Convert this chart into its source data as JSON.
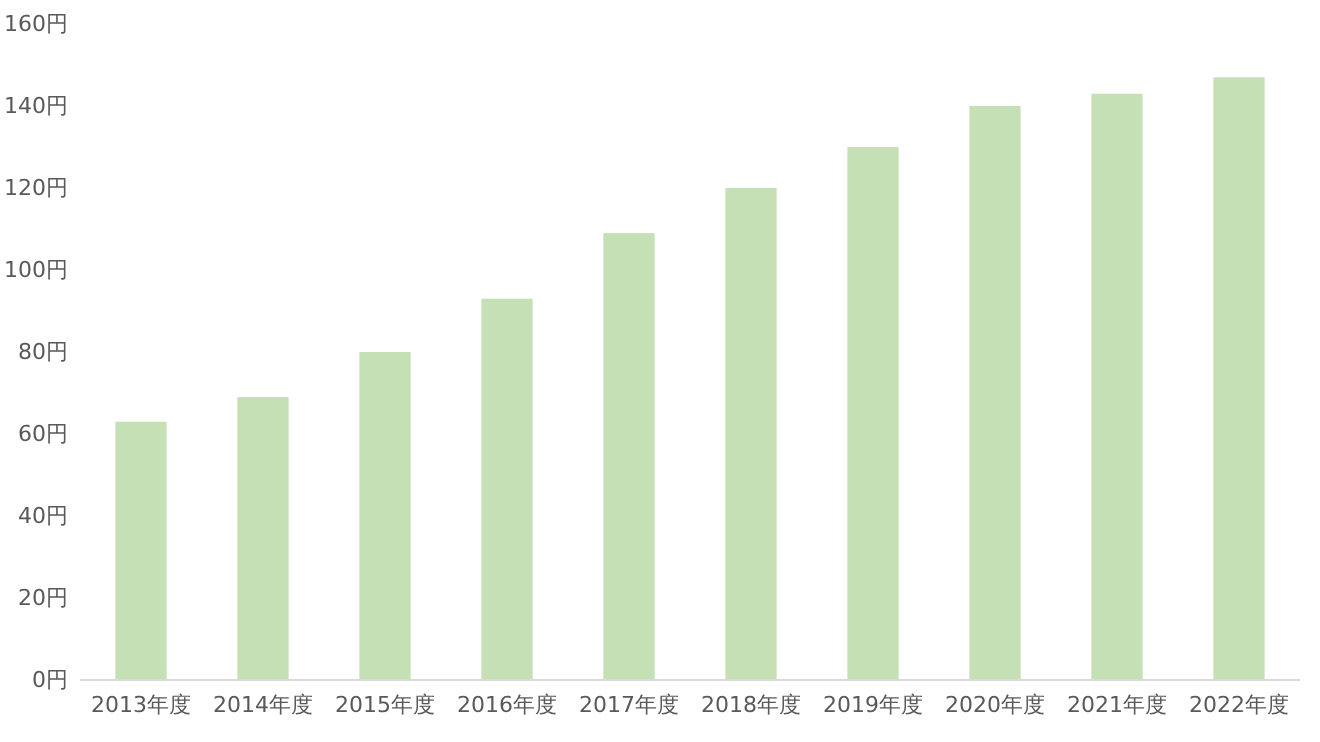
{
  "chart_data": {
    "type": "bar",
    "categories": [
      "2013年度",
      "2014年度",
      "2015年度",
      "2016年度",
      "2017年度",
      "2018年度",
      "2019年度",
      "2020年度",
      "2021年度",
      "2022年度"
    ],
    "values": [
      63,
      69,
      80,
      93,
      109,
      120,
      130,
      140,
      143,
      147
    ],
    "color": "#c5e0b4",
    "ylim": [
      0,
      160
    ],
    "yticks": [
      {
        "value": 0,
        "label": "0円"
      },
      {
        "value": 20,
        "label": "20円"
      },
      {
        "value": 40,
        "label": "40円"
      },
      {
        "value": 60,
        "label": "60円"
      },
      {
        "value": 80,
        "label": "80円"
      },
      {
        "value": 100,
        "label": "100円"
      },
      {
        "value": 120,
        "label": "120円"
      },
      {
        "value": 140,
        "label": "140円"
      },
      {
        "value": 160,
        "label": "160円"
      }
    ],
    "grid": false
  }
}
